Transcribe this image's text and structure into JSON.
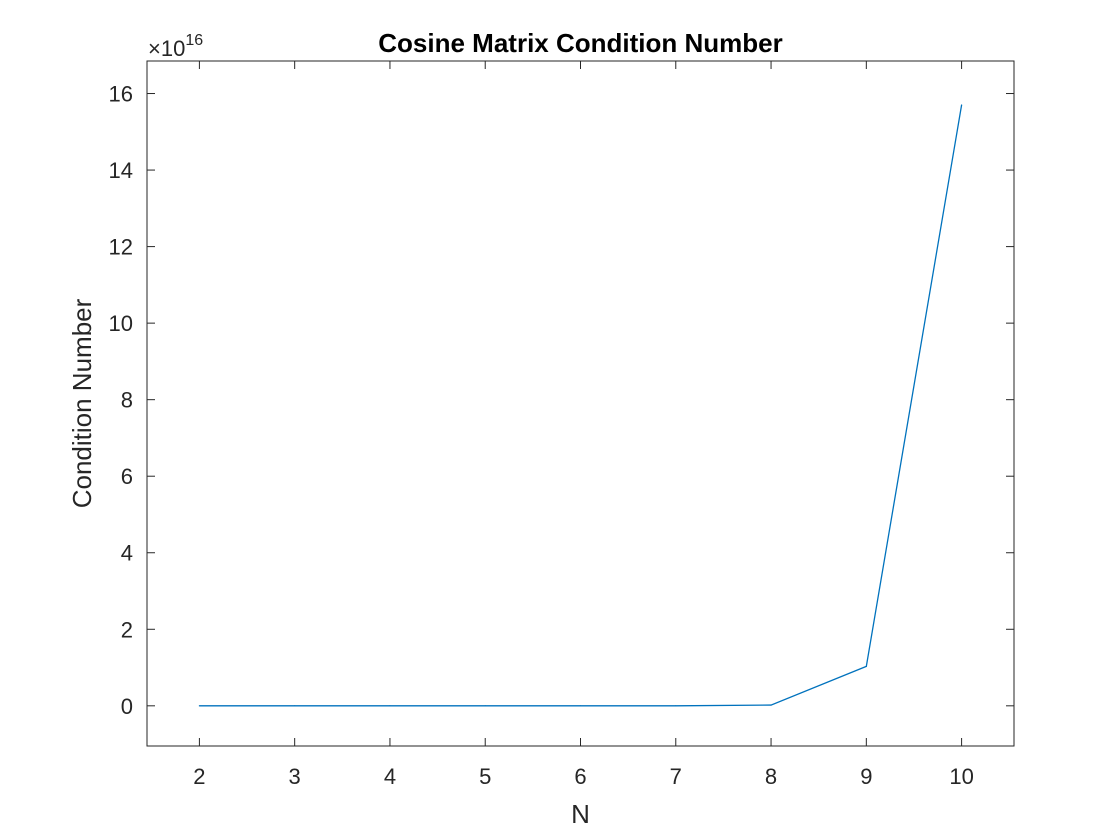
{
  "chart_data": {
    "type": "line",
    "title": "Cosine Matrix Condition Number",
    "xlabel": "N",
    "ylabel": "Condition Number",
    "y_exponent_label": {
      "base": "×10",
      "power": "16"
    },
    "y_scale_factor": 1e+16,
    "x": [
      2,
      3,
      4,
      5,
      6,
      7,
      8,
      9,
      10
    ],
    "series": [
      {
        "values": [
          0,
          0,
          0,
          0,
          0,
          0,
          0.02,
          1.03,
          15.7
        ],
        "color": "#0072BD"
      }
    ],
    "xlim": [
      1.45,
      10.55
    ],
    "ylim": [
      -1.05,
      16.85
    ],
    "xticks": [
      2,
      3,
      4,
      5,
      6,
      7,
      8,
      9,
      10
    ],
    "yticks": [
      0,
      2,
      4,
      6,
      8,
      10,
      12,
      14,
      16
    ],
    "grid": false,
    "legend": "none",
    "axis_color": "#262626"
  }
}
